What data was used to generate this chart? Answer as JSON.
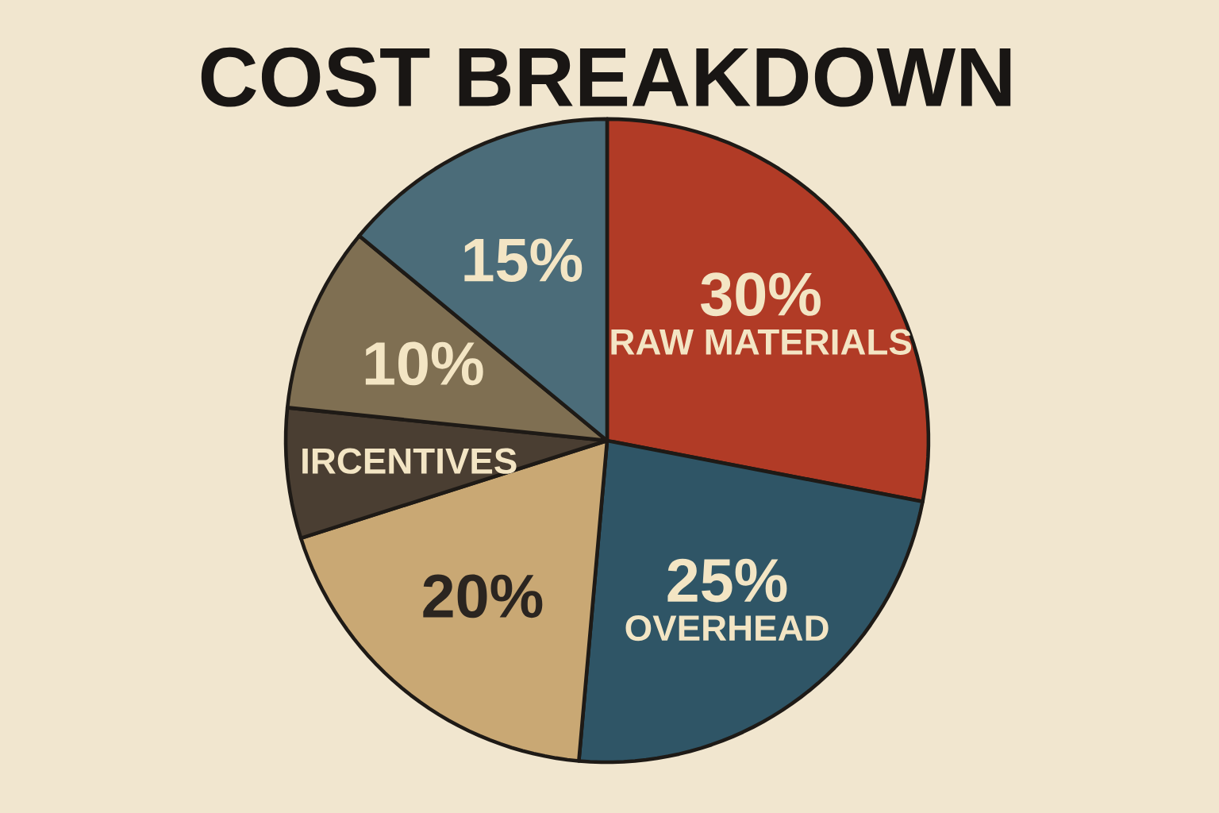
{
  "chart_data": {
    "type": "pie",
    "title": "COST BREAKDOWN",
    "categories": [
      "RAW MATERIALS",
      "OVERHEAD",
      null,
      "IRCENTIVES",
      null,
      null
    ],
    "values": [
      30,
      25,
      20,
      7,
      10,
      15
    ],
    "value_labels": [
      "30%",
      "25%",
      "20%",
      null,
      "10%",
      "15%"
    ],
    "colors": [
      "#b13b26",
      "#2f5566",
      "#c9a874",
      "#4a3e32",
      "#7f6f52",
      "#4b6c79"
    ]
  }
}
